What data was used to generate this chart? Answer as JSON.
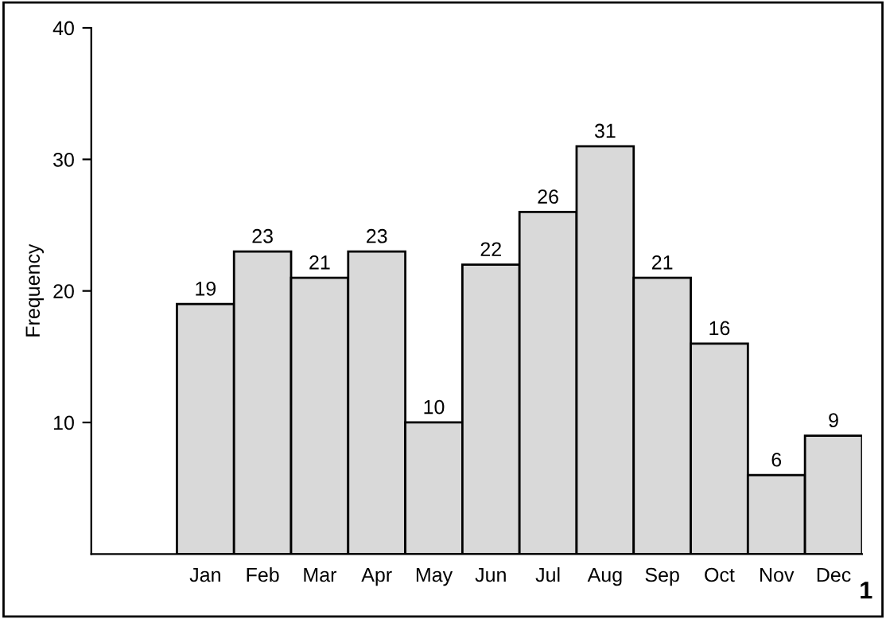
{
  "chart_data": {
    "type": "bar",
    "ylabel": "Frequency",
    "categories": [
      "Jan",
      "Feb",
      "Mar",
      "Apr",
      "May",
      "Jun",
      "Jul",
      "Aug",
      "Sep",
      "Oct",
      "Nov",
      "Dec"
    ],
    "values": [
      19,
      23,
      21,
      23,
      10,
      22,
      26,
      31,
      21,
      16,
      6,
      9
    ],
    "color": "#d9d9d9",
    "ylim": [
      0,
      40
    ],
    "yticks": [
      10,
      20,
      30,
      40
    ],
    "grid": false,
    "data_labels": true,
    "annotations": [
      "1"
    ]
  }
}
